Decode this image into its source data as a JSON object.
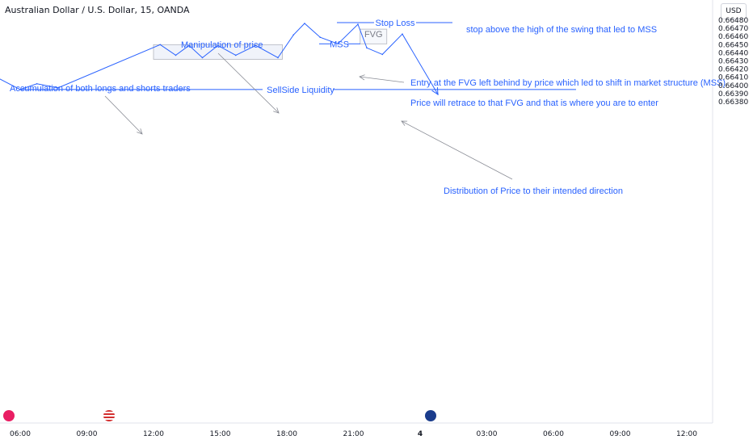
{
  "header": {
    "symbol_title": "Australian Dollar / U.S. Dollar, 15, OANDA",
    "currency_button": "USD"
  },
  "chart_data": {
    "type": "line",
    "ylim": [
      0.66375,
      0.66481
    ],
    "y_ticks": [
      "0.66480",
      "0.66470",
      "0.66460",
      "0.66450",
      "0.66440",
      "0.66430",
      "0.66420",
      "0.66410",
      "0.66400",
      "0.66390",
      "0.66380"
    ],
    "x_ticks": [
      "06:00",
      "09:00",
      "12:00",
      "15:00",
      "18:00",
      "21:00",
      "4",
      "03:00",
      "06:00",
      "09:00",
      "12:00"
    ],
    "x_tick_hours": [
      6,
      9,
      12,
      15,
      18,
      21,
      24,
      27,
      30,
      33,
      36
    ],
    "series": [
      {
        "x": [
          5,
          6,
          6.75,
          7.7,
          12.3,
          13,
          13.6,
          14.2,
          14.9,
          15.7,
          16.6,
          17.6,
          18.3,
          18.8,
          19.5,
          20.3,
          21.2,
          21.6,
          22.3,
          23.2,
          24.8
        ],
        "values": [
          0.66409,
          0.66395,
          0.66402,
          0.66397,
          0.6645,
          0.66437,
          0.66449,
          0.66434,
          0.66449,
          0.66437,
          0.66449,
          0.66434,
          0.66462,
          0.66476,
          0.66459,
          0.66451,
          0.66475,
          0.66446,
          0.66438,
          0.66463,
          0.66389
        ]
      }
    ],
    "annotations": {
      "accumulation": "Accumulation of both longs and shorts traders",
      "manipulation": "Manipulation of price",
      "stop_loss": "Stop Loss",
      "stop_note": "stop above the high of the swing that led to MSS",
      "entry": "Entry at the FVG left behind by price which led to shift in market structure (MSS)",
      "retrace": "Price will retrace to that FVG and that is where you are to enter",
      "mss": "MSS",
      "fvg": "FVG",
      "distribution": "Distribution of Price to their intended direction",
      "sellside": "SellSide Liquidity"
    },
    "levels": {
      "stop_loss": 0.66477,
      "sellside_liquidity": 0.66395,
      "mss": 0.66451
    },
    "boxes": {
      "accumulation": {
        "x": [
          12,
          17.8
        ],
        "y": [
          0.66432,
          0.6645
        ]
      },
      "fvg": {
        "x": [
          21.3,
          22.5
        ],
        "y": [
          0.66451,
          0.66469
        ]
      }
    },
    "grid": false
  },
  "colors": {
    "line": "#2962ff",
    "annotation": "#2962ff",
    "box_fill": "#f0f3fa",
    "box_stroke": "#b2b5be",
    "arrow": "#8a8d96"
  }
}
